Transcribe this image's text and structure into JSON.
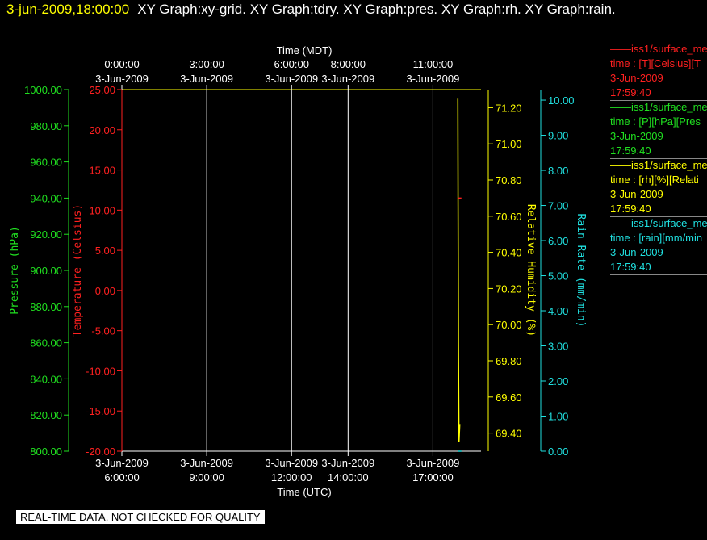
{
  "title": {
    "timestamp": "3-jun-2009,18:00:00",
    "graphs": "XY Graph:xy-grid.  XY Graph:tdry.  XY Graph:pres.  XY Graph:rh.  XY Graph:rain."
  },
  "colors": {
    "temperature": "#ff2020",
    "pressure": "#20e020",
    "rh": "#ffff00",
    "rain": "#20e0e0",
    "grid": "#ffffff"
  },
  "time_axis": {
    "top_title": "Time (MDT)",
    "bottom_title": "Time (UTC)",
    "top_ticks": [
      {
        "time": "0:00:00",
        "date": "3-Jun-2009"
      },
      {
        "time": "3:00:00",
        "date": "3-Jun-2009"
      },
      {
        "time": "6:00:00",
        "date": "3-Jun-2009"
      },
      {
        "time": "8:00:00",
        "date": "3-Jun-2009"
      },
      {
        "time": "11:00:00",
        "date": "3-Jun-2009"
      }
    ],
    "bottom_ticks": [
      {
        "date": "3-Jun-2009",
        "time": "6:00:00"
      },
      {
        "date": "3-Jun-2009",
        "time": "9:00:00"
      },
      {
        "date": "3-Jun-2009",
        "time": "12:00:00"
      },
      {
        "date": "3-Jun-2009",
        "time": "14:00:00"
      },
      {
        "date": "3-Jun-2009",
        "time": "17:00:00"
      }
    ]
  },
  "chart_data": {
    "type": "line",
    "x_unit": "hours UTC, 3-Jun-2009",
    "xlim": [
      6,
      18.7
    ],
    "gridlines_x": [
      6,
      9,
      12,
      14,
      17
    ],
    "axes": {
      "pressure": {
        "label": "Pressure (hPa)",
        "ylim": [
          800,
          1000
        ],
        "ticks": [
          "1000.00",
          "980.00",
          "960.00",
          "940.00",
          "920.00",
          "900.00",
          "880.00",
          "860.00",
          "840.00",
          "820.00",
          "800.00"
        ]
      },
      "temperature": {
        "label": "Temperature (Celsius)",
        "ylim": [
          -20,
          25
        ],
        "ticks": [
          "25.00",
          "20.00",
          "15.00",
          "10.00",
          "5.00",
          "0.00",
          "-5.00",
          "-10.00",
          "-15.00",
          "-20.00"
        ]
      },
      "rh": {
        "label": "Relative Humidity (%)",
        "ylim": [
          69.3,
          71.3
        ],
        "ticks": [
          "71.20",
          "71.00",
          "70.80",
          "70.60",
          "70.40",
          "70.20",
          "70.00",
          "69.80",
          "69.60",
          "69.40"
        ]
      },
      "rain": {
        "label": "Rain Rate (mm/min)",
        "ylim": [
          0,
          10.3
        ],
        "ticks": [
          "10.00",
          "9.00",
          "8.00",
          "7.00",
          "6.00",
          "5.00",
          "4.00",
          "3.00",
          "2.00",
          "1.00",
          "0.00"
        ]
      }
    },
    "series": [
      {
        "name": "iss1/surface_me",
        "axis": "rh",
        "x": [
          17.88,
          17.9,
          17.92,
          17.95
        ],
        "y": [
          71.25,
          69.9,
          69.35,
          69.45
        ]
      },
      {
        "name": "iss1/surface_me",
        "axis": "temperature",
        "x": [
          17.95
        ],
        "y": [
          11.5
        ]
      },
      {
        "name": "iss1/surface_me",
        "axis": "rain",
        "x": [
          17.95
        ],
        "y": [
          0.0
        ]
      }
    ]
  },
  "legend": [
    {
      "name": "iss1/surface_me",
      "desc": "time : [T][Celsius][T",
      "date": "3-Jun-2009",
      "time": "17:59:40",
      "color": "#ff2020"
    },
    {
      "name": "iss1/surface_me",
      "desc": "time : [P][hPa][Pres",
      "date": "3-Jun-2009",
      "time": "17:59:40",
      "color": "#20e020"
    },
    {
      "name": "iss1/surface_me",
      "desc": "time : [rh][%][Relati",
      "date": "3-Jun-2009",
      "time": "17:59:40",
      "color": "#ffff00"
    },
    {
      "name": "iss1/surface_me",
      "desc": "time : [rain][mm/min",
      "date": "3-Jun-2009",
      "time": "17:59:40",
      "color": "#20e0e0"
    }
  ],
  "footer": {
    "quality_note": "REAL-TIME DATA, NOT CHECKED FOR QUALITY"
  }
}
